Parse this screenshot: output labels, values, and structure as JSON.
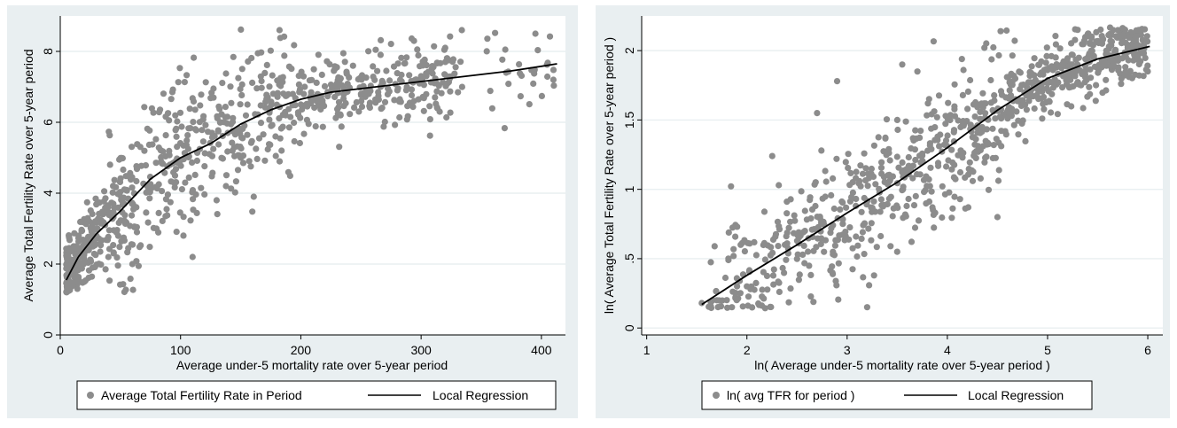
{
  "colors": {
    "panel_bg": "#e9eff1",
    "plot_bg": "#ffffff",
    "grid": "#e9eff1",
    "point": "#8c8c8c",
    "line": "#000000",
    "axis": "#000000"
  },
  "chart_data": [
    {
      "type": "scatter",
      "title": "",
      "xlabel": "Average under-5 mortality rate over 5-year period",
      "ylabel": "Average Total Fertility Rate over 5-year period",
      "xlim": [
        0,
        420
      ],
      "ylim": [
        0,
        9
      ],
      "xticks": [
        0,
        100,
        200,
        300,
        400
      ],
      "xtick_labels": [
        "0",
        "100",
        "200",
        "300",
        "400"
      ],
      "yticks": [
        0,
        2,
        4,
        6,
        8
      ],
      "ytick_labels": [
        "0",
        "2",
        "4",
        "6",
        "8"
      ],
      "grid": true,
      "legend_position": "bottom",
      "series": [
        {
          "name": "Average Total Fertility Rate in Period",
          "kind": "scatter",
          "generated_from_fit": true,
          "n_points": 900,
          "points": [
            [
              8,
              1.3
            ],
            [
              20,
              1.5
            ],
            [
              40,
              2.2
            ],
            [
              60,
              2.0
            ],
            [
              80,
              3.0
            ],
            [
              110,
              2.2
            ],
            [
              130,
              3.8
            ],
            [
              150,
              5.0
            ],
            [
              200,
              6.5
            ],
            [
              250,
              6.8
            ],
            [
              300,
              7.3
            ],
            [
              320,
              8.1
            ],
            [
              395,
              8.5
            ],
            [
              410,
              7.2
            ]
          ]
        },
        {
          "name": "Local Regression",
          "kind": "line",
          "x": [
            5,
            15,
            30,
            50,
            75,
            100,
            125,
            150,
            175,
            200,
            225,
            250,
            275,
            300,
            325,
            350,
            375,
            400,
            413
          ],
          "y": [
            1.55,
            2.2,
            2.85,
            3.5,
            4.4,
            5.0,
            5.4,
            5.95,
            6.35,
            6.65,
            6.85,
            6.95,
            7.05,
            7.15,
            7.25,
            7.35,
            7.45,
            7.58,
            7.65
          ]
        }
      ]
    },
    {
      "type": "scatter",
      "title": "",
      "xlabel": "ln( Average under-5 mortality rate over 5-year period )",
      "ylabel": "ln( Average Total Fertility Rate over 5-year period )",
      "xlim": [
        0.95,
        6.15
      ],
      "ylim": [
        -0.05,
        2.25
      ],
      "xticks": [
        1,
        2,
        3,
        4,
        5,
        6
      ],
      "xtick_labels": [
        "1",
        "2",
        "3",
        "4",
        "5",
        "6"
      ],
      "yticks": [
        0,
        0.5,
        1,
        1.5,
        2
      ],
      "ytick_labels": [
        "0",
        ".5",
        "1",
        "1.5",
        "2"
      ],
      "grid": true,
      "legend_position": "bottom",
      "series": [
        {
          "name": "ln( avg TFR for period )",
          "kind": "scatter",
          "generated_from_fit": true,
          "n_points": 900,
          "points": [
            [
              1.55,
              0.18
            ],
            [
              1.85,
              0.15
            ],
            [
              2.0,
              0.3
            ],
            [
              2.7,
              1.55
            ],
            [
              2.9,
              1.78
            ],
            [
              3.2,
              0.15
            ],
            [
              3.55,
              1.9
            ],
            [
              4.5,
              0.8
            ],
            [
              5.3,
              2.15
            ],
            [
              6.0,
              1.85
            ]
          ]
        },
        {
          "name": "Local Regression",
          "kind": "line",
          "x": [
            1.55,
            2.0,
            2.5,
            3.0,
            3.5,
            4.0,
            4.5,
            5.0,
            5.5,
            6.02
          ],
          "y": [
            0.17,
            0.38,
            0.6,
            0.83,
            1.05,
            1.3,
            1.57,
            1.8,
            1.94,
            2.03
          ]
        }
      ]
    }
  ]
}
